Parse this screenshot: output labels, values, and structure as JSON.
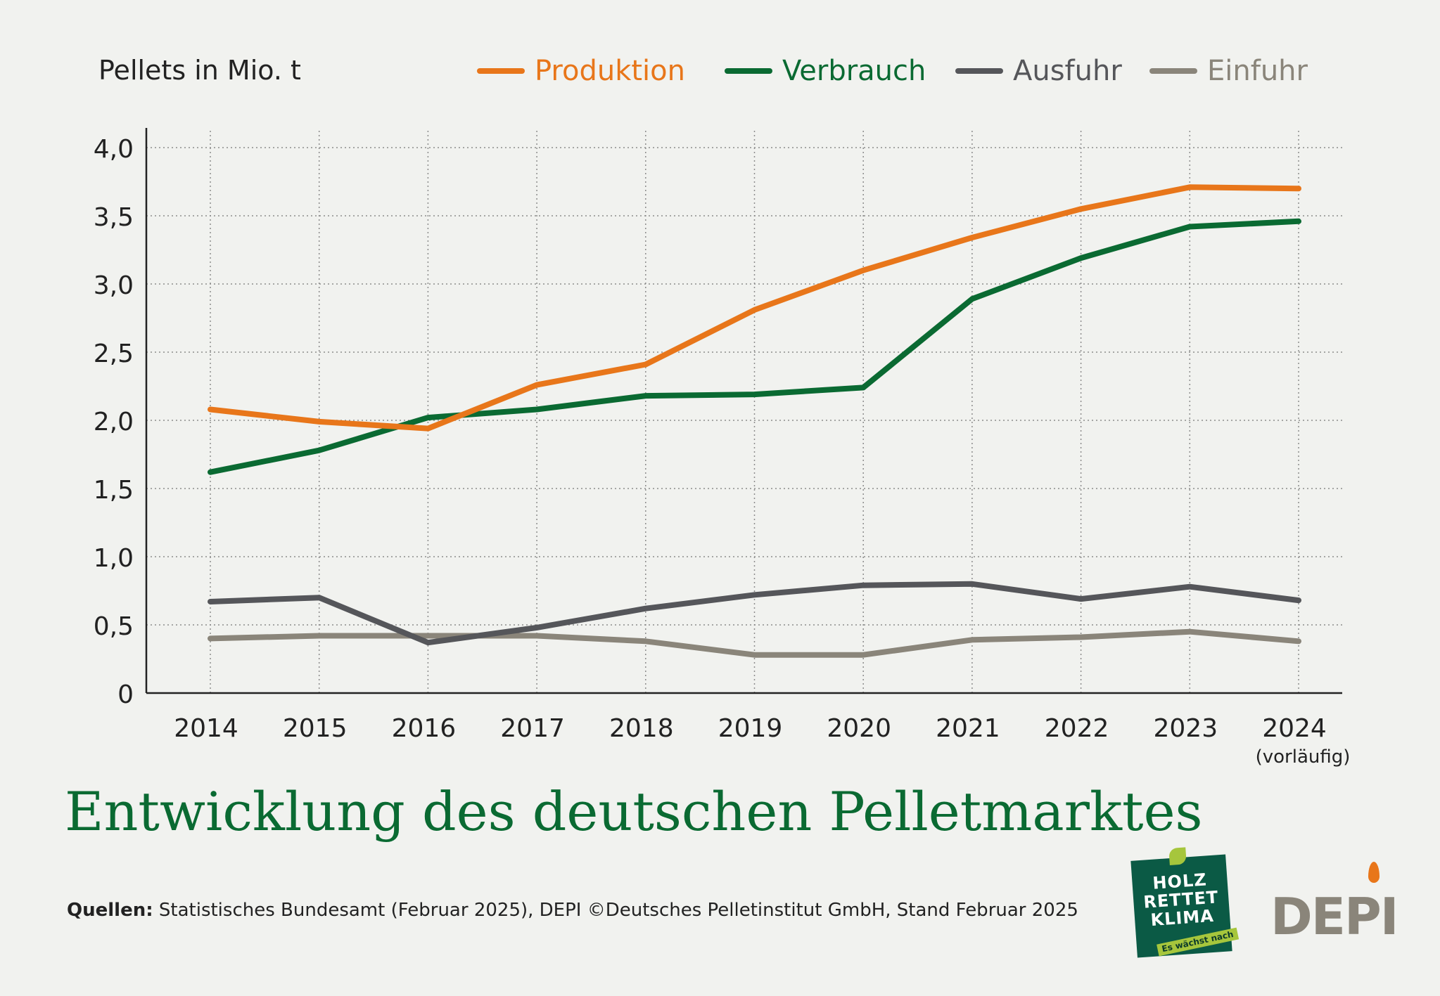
{
  "unit_label": "Pellets in Mio. t",
  "title": "Entwicklung des deutschen Pelletmarktes",
  "source_bold": "Quellen:",
  "source_text": "Statistisches Bundesamt (Februar 2025), DEPI  ©Deutsches Pelletinstitut GmbH, Stand Februar 2025",
  "logos": {
    "badge": {
      "line1": "HOLZ",
      "line2": "RETTET",
      "line3": "KLIMA",
      "tag": "Es wächst nach"
    },
    "depi": "DEPI"
  },
  "colors": {
    "Produktion": "#e8761a",
    "Verbrauch": "#0a6a32",
    "Ausfuhr": "#55565a",
    "Einfuhr": "#8a857a"
  },
  "chart_data": {
    "type": "line",
    "title": "Entwicklung des deutschen Pelletmarktes",
    "ylabel": "Pellets in Mio. t",
    "xlabel": "",
    "x": [
      "2014",
      "2015",
      "2016",
      "2017",
      "2018",
      "2019",
      "2020",
      "2021",
      "2022",
      "2023",
      "2024"
    ],
    "x_sublabels": [
      "",
      "",
      "",
      "",
      "",
      "",
      "",
      "",
      "",
      "",
      "(vorläufig)"
    ],
    "yticks": [
      "0",
      "0,5",
      "1,0",
      "1,5",
      "2,0",
      "2,5",
      "3,0",
      "3,5",
      "4,0"
    ],
    "ylim": [
      0,
      4
    ],
    "grid": true,
    "legend_position": "top",
    "series": [
      {
        "name": "Produktion",
        "values": [
          2.08,
          1.99,
          1.94,
          2.26,
          2.41,
          2.81,
          3.1,
          3.34,
          3.55,
          3.71,
          3.7
        ]
      },
      {
        "name": "Verbrauch",
        "values": [
          1.62,
          1.78,
          2.02,
          2.08,
          2.18,
          2.19,
          2.24,
          2.89,
          3.19,
          3.42,
          3.46
        ]
      },
      {
        "name": "Ausfuhr",
        "values": [
          0.67,
          0.7,
          0.37,
          0.48,
          0.62,
          0.72,
          0.79,
          0.8,
          0.69,
          0.78,
          0.68
        ]
      },
      {
        "name": "Einfuhr",
        "values": [
          0.4,
          0.42,
          0.42,
          0.42,
          0.38,
          0.28,
          0.28,
          0.39,
          0.41,
          0.45,
          0.38
        ]
      }
    ]
  }
}
